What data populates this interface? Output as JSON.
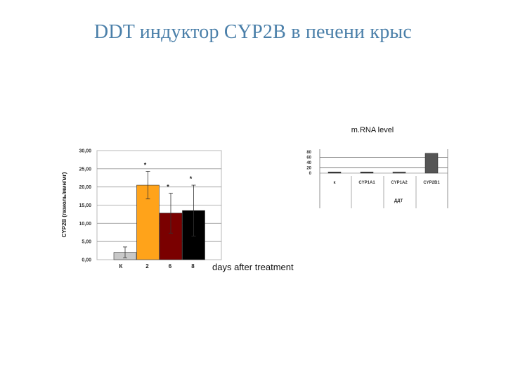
{
  "title": "DDT индуктор CYP2B в печени крыс",
  "chart_data": [
    {
      "type": "bar",
      "title": "",
      "ylabel": "CYP2B (пкмоль/мин/мг)",
      "xlabel": "days after treatment",
      "ylim": [
        0,
        30
      ],
      "ytick_labels": [
        "0,00",
        "5,00",
        "10,00",
        "15,00",
        "20,00",
        "25,00",
        "30,00"
      ],
      "yticks": [
        0,
        5,
        10,
        15,
        20,
        25,
        30
      ],
      "grid": true,
      "categories": [
        "К",
        "2",
        "6",
        "8"
      ],
      "values": [
        2.0,
        20.5,
        12.8,
        13.5
      ],
      "errors": [
        1.5,
        3.8,
        5.5,
        7.0
      ],
      "significance": [
        "",
        "*",
        "*",
        "*"
      ],
      "colors": [
        "#c8c8c8",
        "#ffa31a",
        "#7a0000",
        "#000000"
      ]
    },
    {
      "type": "bar",
      "title": "m.RNA level",
      "xlabel": "ДДТ",
      "ylabel": "",
      "ylim": [
        0,
        80
      ],
      "ytick_labels": [
        "0",
        "20",
        "40",
        "60",
        "80"
      ],
      "yticks": [
        0,
        20,
        40,
        60,
        80
      ],
      "grid": true,
      "categories": [
        "к",
        "CYP1A1",
        "CYP1A2",
        "CYP2B1"
      ],
      "values": [
        1,
        2,
        4,
        75
      ],
      "colors": [
        "#222222",
        "#222222",
        "#444444",
        "#555555"
      ]
    }
  ]
}
